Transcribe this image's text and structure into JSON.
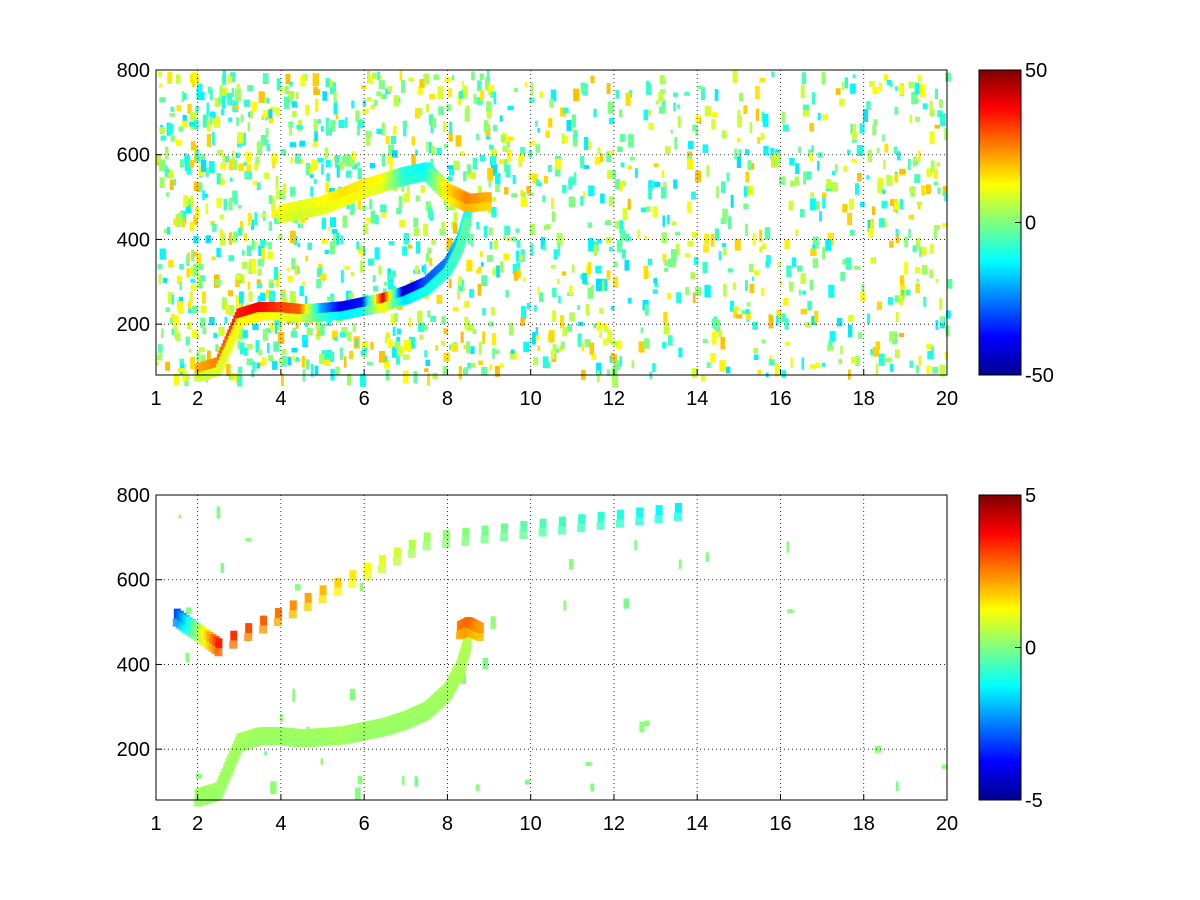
{
  "chart_data": [
    {
      "type": "heatmap",
      "title": "",
      "xlabel": "",
      "ylabel": "",
      "xlim": [
        1,
        20
      ],
      "ylim": [
        80,
        800
      ],
      "x_ticks": [
        "1",
        "2",
        "4",
        "6",
        "8",
        "10",
        "12",
        "14",
        "16",
        "18",
        "20"
      ],
      "y_ticks": [
        "200",
        "400",
        "600",
        "800"
      ],
      "grid": true,
      "colormap": "jet",
      "colorbar": {
        "min": -50,
        "max": 50,
        "tick_labels": [
          "50",
          "0",
          "-50"
        ]
      },
      "features": [
        {
          "name": "ridge",
          "x": [
            2.0,
            2.5,
            3.0,
            3.5,
            4.0,
            4.5,
            5.0,
            5.5,
            6.0,
            6.5,
            7.0,
            7.5,
            8.0,
            8.3,
            8.5
          ],
          "y": [
            95,
            110,
            225,
            240,
            240,
            235,
            238,
            242,
            252,
            262,
            278,
            300,
            345,
            400,
            470
          ],
          "value": [
            20,
            25,
            35,
            38,
            32,
            28,
            -20,
            -40,
            -35,
            40,
            -45,
            -30,
            -25,
            -15,
            -10
          ]
        },
        {
          "name": "upper-branch",
          "x": [
            4.0,
            4.5,
            5.0,
            5.5,
            6.0,
            6.5,
            7.0,
            7.5,
            8.0,
            8.5,
            9.0
          ],
          "y": [
            470,
            480,
            490,
            510,
            530,
            545,
            560,
            570,
            520,
            495,
            500
          ],
          "value": [
            12,
            10,
            12,
            15,
            14,
            12,
            -10,
            -12,
            15,
            25,
            20
          ]
        }
      ]
    },
    {
      "type": "heatmap",
      "title": "",
      "xlabel": "",
      "ylabel": "",
      "xlim": [
        1,
        20
      ],
      "ylim": [
        80,
        800
      ],
      "x_ticks": [
        "1",
        "2",
        "4",
        "6",
        "8",
        "10",
        "12",
        "14",
        "16",
        "18",
        "20"
      ],
      "y_ticks": [
        "200",
        "400",
        "600",
        "800"
      ],
      "grid": true,
      "colormap": "jet",
      "colorbar": {
        "min": -5,
        "max": 5,
        "tick_labels": [
          "5",
          "0",
          "-5"
        ]
      },
      "features": [
        {
          "name": "ridge",
          "x": [
            2.0,
            2.5,
            3.0,
            3.5,
            4.0,
            4.5,
            5.0,
            5.5,
            6.0,
            6.5,
            7.0,
            7.5,
            8.0,
            8.3,
            8.5
          ],
          "y": [
            95,
            110,
            225,
            240,
            240,
            235,
            238,
            242,
            252,
            262,
            278,
            300,
            345,
            400,
            470
          ],
          "value": [
            0.3,
            0.3,
            0.4,
            0.3,
            0.3,
            0.3,
            0.3,
            0.4,
            0.3,
            0.3,
            0.3,
            0.3,
            0.4,
            0.5,
            0.6
          ]
        },
        {
          "name": "hotspot",
          "x": [
            8.3,
            8.5,
            8.8
          ],
          "y": [
            490,
            500,
            485
          ],
          "value": [
            2.5,
            2.8,
            2.2
          ]
        },
        {
          "name": "stripes",
          "x": [
            1.5,
            2.5,
            7.5,
            14.0
          ],
          "y": [
            520,
            450,
            700,
            775
          ],
          "value": [
            -3,
            3.5,
            0.3,
            -1.5
          ]
        }
      ]
    }
  ]
}
